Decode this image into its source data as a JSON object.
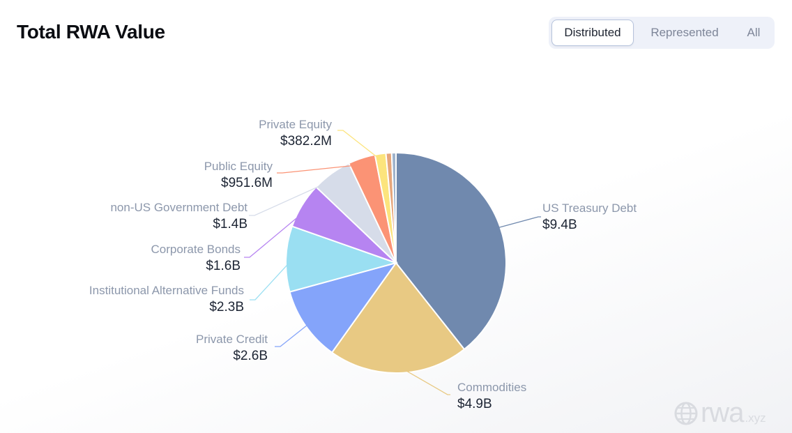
{
  "header": {
    "title": "Total RWA Value"
  },
  "toggle": {
    "options": [
      "Distributed",
      "Represented",
      "All"
    ],
    "selected": "Distributed"
  },
  "watermark": {
    "brand": "rwa",
    "suffix": ".xyz"
  },
  "chart_data": {
    "type": "pie",
    "title": "Total RWA Value",
    "unit": "USD billions",
    "slices": [
      {
        "label": "US Treasury Debt",
        "display": "$9.4B",
        "value": 9.4,
        "color": "#7089ae"
      },
      {
        "label": "Commodities",
        "display": "$4.9B",
        "value": 4.9,
        "color": "#e8c983"
      },
      {
        "label": "Private Credit",
        "display": "$2.6B",
        "value": 2.6,
        "color": "#84a4fa"
      },
      {
        "label": "Institutional Alternative Funds",
        "display": "$2.3B",
        "value": 2.3,
        "color": "#9adff2"
      },
      {
        "label": "Corporate Bonds",
        "display": "$1.6B",
        "value": 1.6,
        "color": "#b684f1"
      },
      {
        "label": "non-US Government Debt",
        "display": "$1.4B",
        "value": 1.4,
        "color": "#d6dce9"
      },
      {
        "label": "Public Equity",
        "display": "$951.6M",
        "value": 0.9516,
        "color": "#fb9375"
      },
      {
        "label": "Private Equity",
        "display": "$382.2M",
        "value": 0.3822,
        "color": "#fce47d"
      },
      {
        "label": "",
        "display": "",
        "value": 0.2,
        "color": "#e6a67b"
      },
      {
        "label": "",
        "display": "",
        "value": 0.15,
        "color": "#9fb3cc"
      }
    ]
  }
}
